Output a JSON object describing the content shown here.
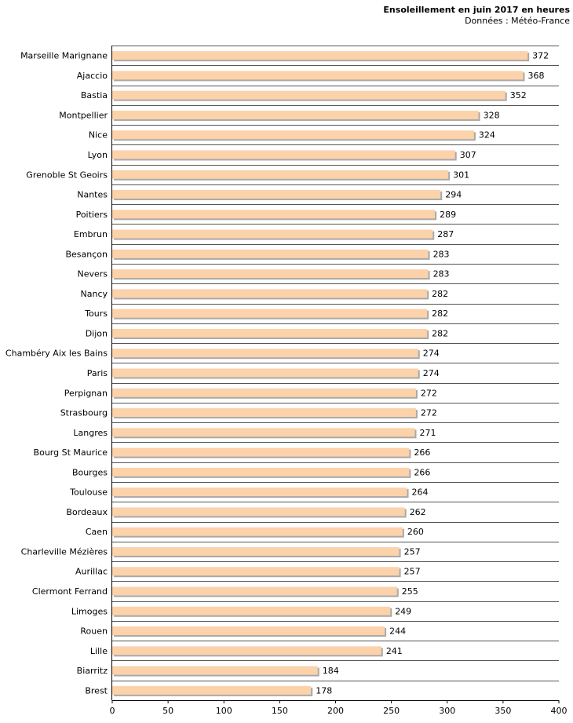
{
  "chart_data": {
    "type": "bar",
    "orientation": "horizontal",
    "title": "Ensoleillement en juin 2017 en heures",
    "subtitle": "Données : Météo-France",
    "xlabel": "",
    "ylabel": "",
    "xlim": [
      0,
      400
    ],
    "xticks": [
      0,
      50,
      100,
      150,
      200,
      250,
      300,
      350,
      400
    ],
    "bar_color": "#fcd2aa",
    "bar_shadow_color": "#a9a9a9",
    "grid_color": "#555555",
    "categories": [
      "Marseille Marignane",
      "Ajaccio",
      "Bastia",
      "Montpellier",
      "Nice",
      "Lyon",
      "Grenoble St Geoirs",
      "Nantes",
      "Poitiers",
      "Embrun",
      "Besançon",
      "Nevers",
      "Nancy",
      "Tours",
      "Dijon",
      "Chambéry Aix les Bains",
      "Paris",
      "Perpignan",
      "Strasbourg",
      "Langres",
      "Bourg St Maurice",
      "Bourges",
      "Toulouse",
      "Bordeaux",
      "Caen",
      "Charleville Mézières",
      "Aurillac",
      "Clermont Ferrand",
      "Limoges",
      "Rouen",
      "Lille",
      "Biarritz",
      "Brest"
    ],
    "values": [
      372,
      368,
      352,
      328,
      324,
      307,
      301,
      294,
      289,
      287,
      283,
      283,
      282,
      282,
      282,
      274,
      274,
      272,
      272,
      271,
      266,
      266,
      264,
      262,
      260,
      257,
      257,
      255,
      249,
      244,
      241,
      184,
      178
    ]
  }
}
